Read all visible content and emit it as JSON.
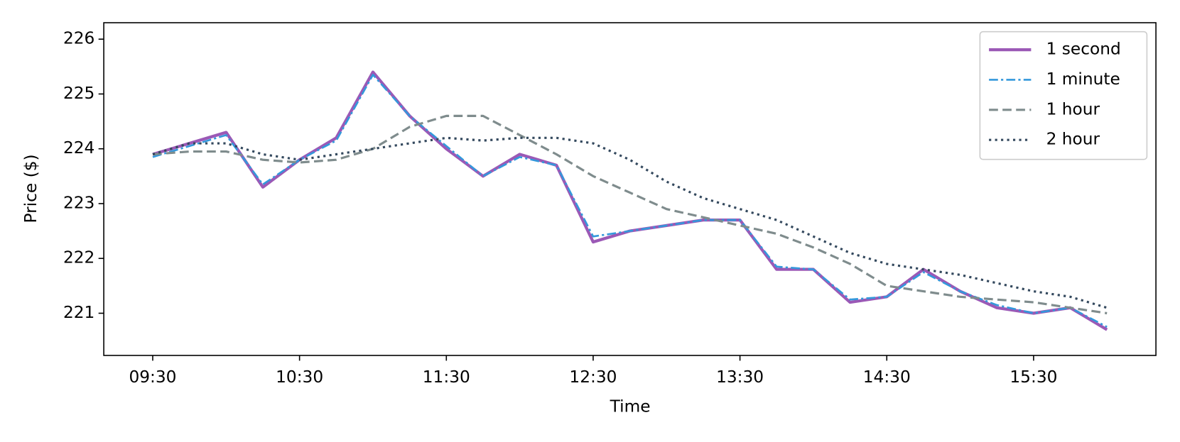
{
  "chart_data": {
    "type": "line",
    "x_label": "Time",
    "y_label": "Price ($)",
    "x": [
      "09:30",
      "09:45",
      "10:00",
      "10:15",
      "10:30",
      "10:45",
      "11:00",
      "11:15",
      "11:30",
      "11:45",
      "12:00",
      "12:15",
      "12:30",
      "12:45",
      "13:00",
      "13:15",
      "13:30",
      "13:45",
      "14:00",
      "14:15",
      "14:30",
      "14:45",
      "15:00",
      "15:15",
      "15:30",
      "15:45",
      "16:00"
    ],
    "series": [
      {
        "name": "1 second",
        "color": "#9b59b6",
        "style": "solid",
        "width": 4,
        "values": [
          223.9,
          224.1,
          224.3,
          223.3,
          223.8,
          224.2,
          225.4,
          224.6,
          224.0,
          223.5,
          223.9,
          223.7,
          222.3,
          222.5,
          222.6,
          222.7,
          222.7,
          221.8,
          221.8,
          221.2,
          221.3,
          221.8,
          221.4,
          221.1,
          221.0,
          221.1,
          220.7
        ]
      },
      {
        "name": "1 minute",
        "color": "#3498db",
        "style": "dashdot",
        "width": 2.5,
        "values": [
          223.85,
          224.05,
          224.25,
          223.35,
          223.8,
          224.15,
          225.35,
          224.6,
          224.05,
          223.5,
          223.85,
          223.7,
          222.4,
          222.5,
          222.6,
          222.7,
          222.7,
          221.85,
          221.8,
          221.25,
          221.3,
          221.75,
          221.4,
          221.15,
          221.0,
          221.1,
          220.75
        ]
      },
      {
        "name": "1 hour",
        "color": "#7f8c8d",
        "style": "dashed",
        "width": 3,
        "values": [
          223.9,
          223.95,
          223.95,
          223.8,
          223.75,
          223.8,
          224.0,
          224.4,
          224.6,
          224.6,
          224.25,
          223.9,
          223.5,
          223.2,
          222.9,
          222.75,
          222.6,
          222.45,
          222.2,
          221.9,
          221.5,
          221.4,
          221.3,
          221.25,
          221.2,
          221.1,
          221.0
        ]
      },
      {
        "name": "2 hour",
        "color": "#34495e",
        "style": "dotted",
        "width": 3,
        "values": [
          223.9,
          224.1,
          224.1,
          223.9,
          223.8,
          223.9,
          224.0,
          224.1,
          224.2,
          224.15,
          224.2,
          224.2,
          224.1,
          223.8,
          223.4,
          223.1,
          222.9,
          222.7,
          222.4,
          222.1,
          221.9,
          221.8,
          221.7,
          221.55,
          221.4,
          221.3,
          221.1
        ]
      }
    ],
    "xlim": [
      "09:10",
      "16:20"
    ],
    "xticks": [
      "09:30",
      "10:30",
      "11:30",
      "12:30",
      "13:30",
      "14:30",
      "15:30"
    ],
    "ylim": [
      220.23,
      226.3
    ],
    "yticks": [
      221,
      222,
      223,
      224,
      225,
      226
    ],
    "legend": "upper right",
    "grid": false
  }
}
